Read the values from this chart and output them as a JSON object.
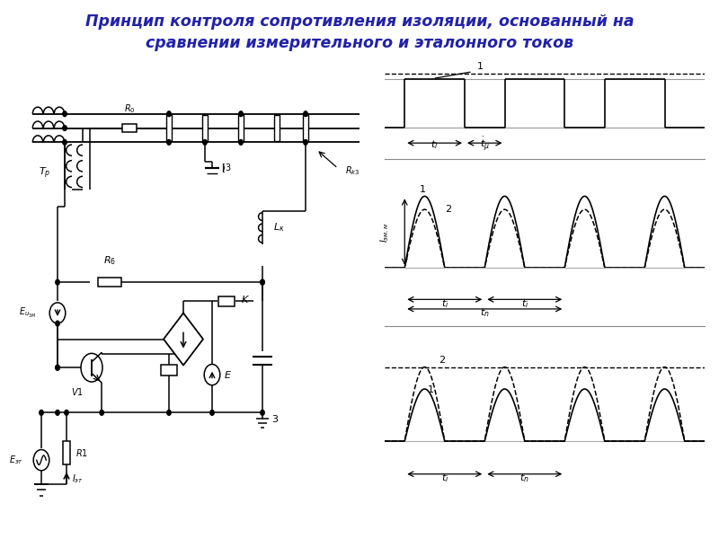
{
  "title_line1": "Принцип контроля сопротивления изоляции, основанный на",
  "title_line2": "сравнении измерительного и эталонного токов",
  "title_color": "#2222aa",
  "title_fontsize": 12.5,
  "bg_color": "#ffffff",
  "fig_width": 8.0,
  "fig_height": 6.0,
  "dpi": 100
}
